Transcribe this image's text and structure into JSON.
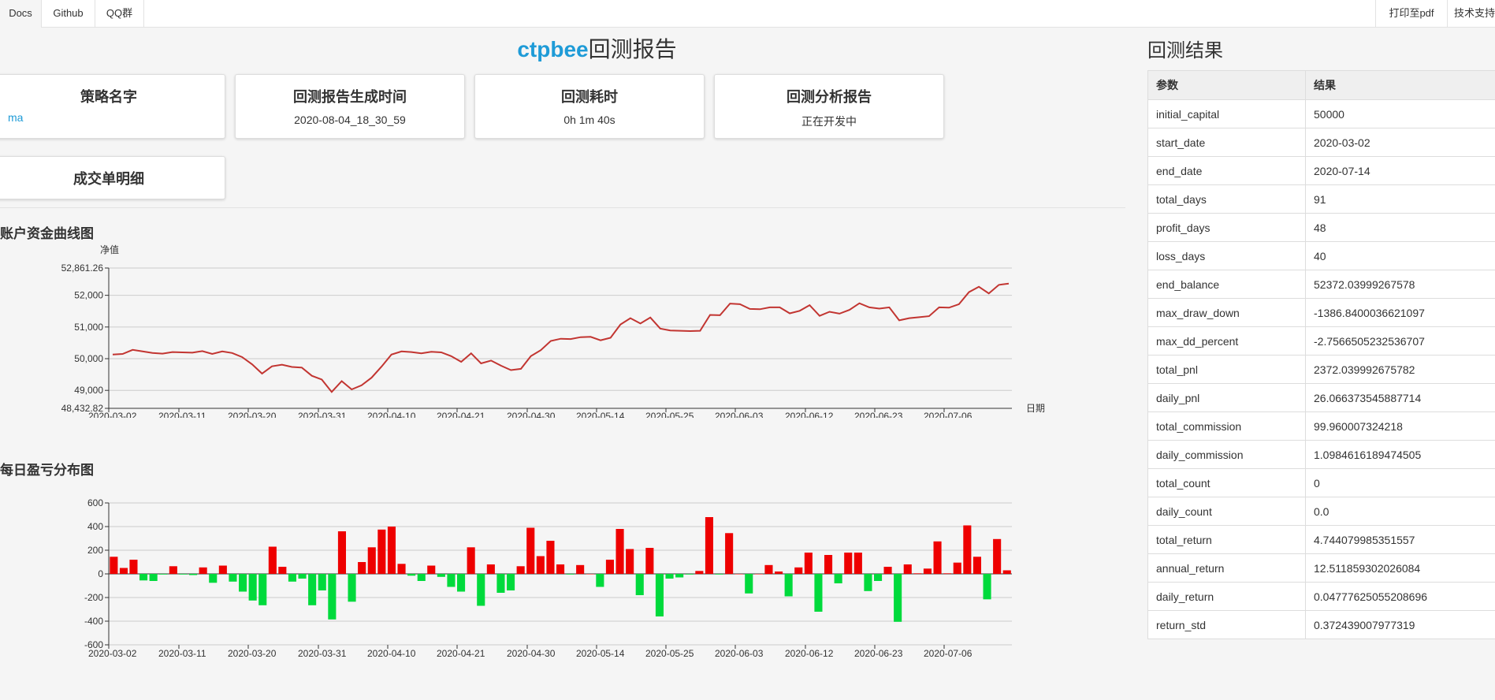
{
  "nav": {
    "left": [
      "Docs",
      "Github",
      "QQ群"
    ],
    "right": [
      "打印至pdf",
      "技术支持"
    ]
  },
  "header": {
    "brand": "ctpbee",
    "title": "回测报告"
  },
  "cards": [
    {
      "title": "策略名字",
      "value": "ma"
    },
    {
      "title": "回测报告生成时间",
      "value": "2020-08-04_18_30_59"
    },
    {
      "title": "回测耗时",
      "value": "0h 1m 40s"
    },
    {
      "title": "回测分析报告",
      "value": "正在开发中"
    },
    {
      "title": "成交单明细",
      "value": ""
    }
  ],
  "sections": {
    "equity": "账户资金曲线图",
    "daily": "每日盈亏分布图"
  },
  "chart_data": [
    {
      "type": "line",
      "title": "账户资金曲线图",
      "ylabel": "净值",
      "xlabel": "日期",
      "ylim": [
        48432.82,
        52861.26
      ],
      "yticks": [
        "52,861.26",
        "52,000",
        "51,000",
        "50,000",
        "49,000",
        "48,432.82"
      ],
      "x_tick_labels": [
        "2020-03-02",
        "2020-03-11",
        "2020-03-20",
        "2020-03-31",
        "2020-04-10",
        "2020-04-21",
        "2020-04-30",
        "2020-05-14",
        "2020-05-25",
        "2020-06-03",
        "2020-06-12",
        "2020-06-23",
        "2020-07-06"
      ],
      "color": "#c23531",
      "values": [
        50130,
        50150,
        50280,
        50230,
        50180,
        50160,
        50210,
        50200,
        50190,
        50240,
        50150,
        50230,
        50180,
        50050,
        49820,
        49530,
        49760,
        49810,
        49740,
        49720,
        49460,
        49340,
        48950,
        49290,
        49030,
        49160,
        49400,
        49750,
        50130,
        50230,
        50210,
        50170,
        50220,
        50200,
        50080,
        49900,
        50170,
        49850,
        49940,
        49780,
        49640,
        49680,
        50080,
        50270,
        50560,
        50630,
        50620,
        50680,
        50690,
        50580,
        50660,
        51080,
        51280,
        51110,
        51300,
        50950,
        50890,
        50880,
        50870,
        50880,
        51380,
        51370,
        51740,
        51720,
        51570,
        51560,
        51620,
        51620,
        51430,
        51510,
        51690,
        51350,
        51480,
        51420,
        51540,
        51750,
        51620,
        51580,
        51620,
        51210,
        51280,
        51310,
        51340,
        51620,
        51610,
        51720,
        52100,
        52270,
        52060,
        52330,
        52370
      ]
    },
    {
      "type": "bar",
      "title": "每日盈亏分布图",
      "ylim": [
        -600,
        600
      ],
      "yticks": [
        "600",
        "400",
        "200",
        "0",
        "-200",
        "-400",
        "-600"
      ],
      "x_tick_labels": [
        "2020-03-02",
        "2020-03-11",
        "2020-03-20",
        "2020-03-31",
        "2020-04-10",
        "2020-04-21",
        "2020-04-30",
        "2020-05-14",
        "2020-05-25",
        "2020-06-03",
        "2020-06-12",
        "2020-06-23",
        "2020-07-06"
      ],
      "pos_color": "#ee0000",
      "neg_color": "#00da3c",
      "values": [
        145,
        50,
        120,
        -55,
        -60,
        -5,
        65,
        -5,
        -10,
        55,
        -75,
        70,
        -65,
        -150,
        -225,
        -265,
        230,
        60,
        -65,
        -40,
        -265,
        -140,
        -385,
        360,
        -235,
        100,
        225,
        375,
        400,
        85,
        -15,
        -60,
        70,
        -25,
        -110,
        -150,
        225,
        -270,
        80,
        -160,
        -140,
        65,
        390,
        150,
        280,
        80,
        -5,
        75,
        0,
        -110,
        120,
        380,
        210,
        -180,
        220,
        -360,
        -40,
        -30,
        -5,
        25,
        480,
        -5,
        345,
        0,
        -165,
        0,
        75,
        20,
        -190,
        55,
        180,
        -320,
        160,
        -80,
        180,
        180,
        -145,
        -60,
        60,
        -405,
        80,
        5,
        45,
        275,
        5,
        95,
        410,
        145,
        -215,
        295,
        30
      ]
    }
  ],
  "results": {
    "headers": [
      "参数",
      "结果"
    ],
    "rows": [
      [
        "initial_capital",
        "50000"
      ],
      [
        "start_date",
        "2020-03-02"
      ],
      [
        "end_date",
        "2020-07-14"
      ],
      [
        "total_days",
        "91"
      ],
      [
        "profit_days",
        "48"
      ],
      [
        "loss_days",
        "40"
      ],
      [
        "end_balance",
        "52372.03999267578"
      ],
      [
        "max_draw_down",
        "-1386.8400036621097"
      ],
      [
        "max_dd_percent",
        "-2.7566505232536707"
      ],
      [
        "total_pnl",
        "2372.039992675782"
      ],
      [
        "daily_pnl",
        "26.066373545887714"
      ],
      [
        "total_commission",
        "99.960007324218"
      ],
      [
        "daily_commission",
        "1.0984616189474505"
      ],
      [
        "total_count",
        "0"
      ],
      [
        "daily_count",
        "0.0"
      ],
      [
        "total_return",
        "4.744079985351557"
      ],
      [
        "annual_return",
        "12.511859302026084"
      ],
      [
        "daily_return",
        "0.04777625055208696"
      ],
      [
        "return_std",
        "0.372439007977319"
      ]
    ],
    "title": "回测结果"
  }
}
